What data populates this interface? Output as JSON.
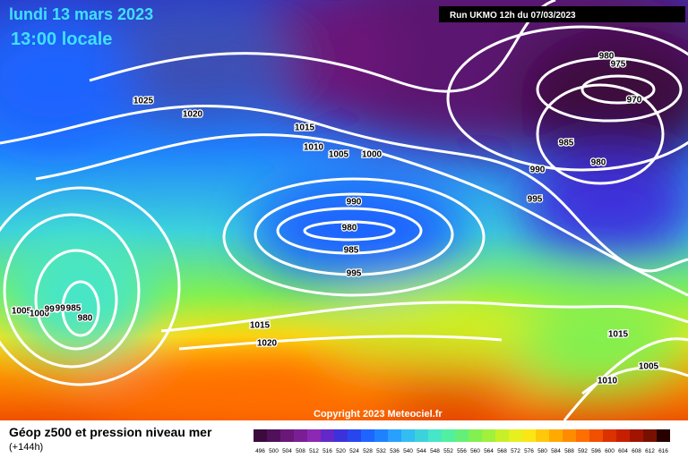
{
  "header": {
    "date": "lundi 13 mars 2023",
    "time": "13:00 locale",
    "run": "Run UKMO 12h du 07/03/2023"
  },
  "isobar_labels": [
    1025,
    1020,
    1015,
    1010,
    1005,
    1000,
    990,
    980,
    985,
    995,
    980,
    975,
    970,
    985,
    990,
    980,
    995,
    1005,
    1000,
    995,
    990,
    985,
    980,
    1015,
    1020,
    1015,
    1005,
    1010
  ],
  "copyright": "Copyright 2023 Meteociel.fr",
  "legend": {
    "title": "Géop z500 et pression niveau mer",
    "subtitle": "(+144h)",
    "scale_labels": [
      496,
      500,
      504,
      508,
      512,
      516,
      520,
      524,
      528,
      532,
      536,
      540,
      544,
      548,
      552,
      556,
      560,
      564,
      568,
      572,
      576,
      580,
      584,
      588,
      592,
      596,
      600,
      604,
      608,
      612,
      616
    ]
  }
}
